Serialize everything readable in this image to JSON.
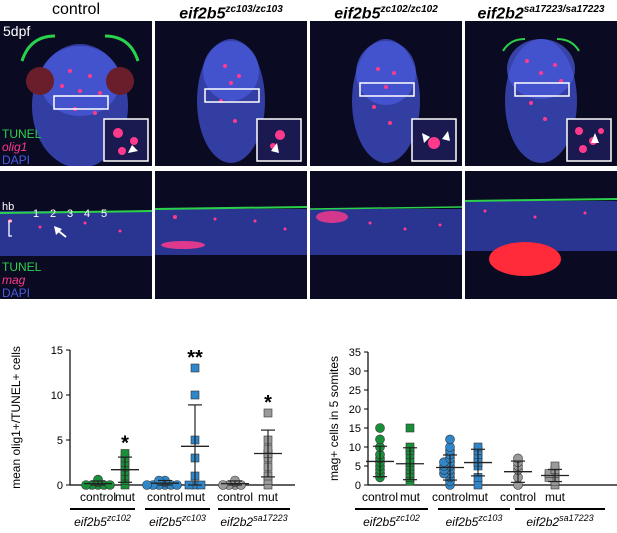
{
  "figure": {
    "stage_label": "5dpf",
    "column_headers": [
      {
        "base": "control",
        "gene": "",
        "sup": ""
      },
      {
        "base": "",
        "gene": "eif2b5",
        "sup": "zc103/zc103"
      },
      {
        "base": "",
        "gene": "eif2b5",
        "sup": "zc102/zc102"
      },
      {
        "base": "",
        "gene": "eif2b2",
        "sup": "sa17223/sa17223"
      }
    ],
    "row1_stains": [
      "TUNEL",
      "olig1",
      "DAPI"
    ],
    "row2_stains": [
      "TUNEL",
      "mag",
      "DAPI"
    ],
    "row2_region_label": "hb",
    "somite_numbers": [
      "1",
      "2",
      "3",
      "4",
      "5"
    ],
    "colors": {
      "tunel": "#2bd14b",
      "olig1": "#ff3a8c",
      "dapi": "#4a5be0",
      "green_marker": "#1a8f3a",
      "blue_marker": "#2f86c8",
      "grey_marker": "#9a9a9a"
    }
  },
  "chart_data": [
    {
      "type": "scatter",
      "ylabel": "mean olig1+/TUNEL+ cells",
      "ylim": [
        0,
        15
      ],
      "yticks": [
        "0",
        "5",
        "10",
        "15"
      ],
      "groups": [
        {
          "gene": "eif2b5",
          "sup": "zc102",
          "categories": [
            "control",
            "mut"
          ]
        },
        {
          "gene": "eif2b5",
          "sup": "zc103",
          "categories": [
            "control",
            "mut"
          ]
        },
        {
          "gene": "eif2b2",
          "sup": "sa17223",
          "categories": [
            "control",
            "mut"
          ]
        }
      ],
      "series": [
        {
          "group": 0,
          "category": "control",
          "marker": "circle",
          "color": "green",
          "values": [
            0,
            0,
            0,
            0,
            0,
            0.3,
            0.6
          ],
          "mean": 0.15,
          "sd": 0.3
        },
        {
          "group": 0,
          "category": "mut",
          "marker": "square",
          "color": "green",
          "values": [
            0,
            0.5,
            1,
            1.5,
            2,
            2.5,
            3,
            3.5
          ],
          "mean": 1.7,
          "sd": 1.4,
          "significance": "*"
        },
        {
          "group": 1,
          "category": "control",
          "marker": "circle",
          "color": "blue",
          "values": [
            0,
            0,
            0,
            0,
            0,
            0,
            0.3,
            0.5,
            0.5
          ],
          "mean": 0.2,
          "sd": 0.3
        },
        {
          "group": 1,
          "category": "mut",
          "marker": "square",
          "color": "blue",
          "values": [
            0,
            0,
            0,
            1,
            3,
            5,
            10,
            13
          ],
          "mean": 4.3,
          "sd": 4.6,
          "significance": "**"
        },
        {
          "group": 2,
          "category": "control",
          "marker": "circle",
          "color": "grey",
          "values": [
            0,
            0,
            0,
            0,
            0.3,
            0.5
          ],
          "mean": 0.15,
          "sd": 0.3
        },
        {
          "group": 2,
          "category": "mut",
          "marker": "square",
          "color": "grey",
          "values": [
            0,
            0.5,
            1,
            2,
            3,
            3.5,
            4,
            5,
            8
          ],
          "mean": 3.5,
          "sd": 2.6,
          "significance": "*"
        }
      ]
    },
    {
      "type": "scatter",
      "ylabel": "mag+ cells in 5 somites",
      "ylim": [
        0,
        35
      ],
      "yticks": [
        "0",
        "5",
        "10",
        "15",
        "20",
        "25",
        "30",
        "35"
      ],
      "groups": [
        {
          "gene": "eif2b5",
          "sup": "zc102",
          "categories": [
            "control",
            "mut"
          ]
        },
        {
          "gene": "eif2b5",
          "sup": "zc103",
          "categories": [
            "control",
            "mut"
          ]
        },
        {
          "gene": "eif2b2",
          "sup": "sa17223",
          "categories": [
            "control",
            "mut"
          ]
        }
      ],
      "series": [
        {
          "group": 0,
          "category": "control",
          "marker": "circle",
          "color": "green",
          "values": [
            2,
            3,
            4,
            5,
            6,
            7,
            8,
            10,
            12,
            15
          ],
          "mean": 6.2,
          "sd": 4.0
        },
        {
          "group": 0,
          "category": "mut",
          "marker": "square",
          "color": "green",
          "values": [
            1,
            2,
            3,
            4,
            5,
            6,
            8,
            9,
            10,
            15
          ],
          "mean": 5.6,
          "sd": 4.2
        },
        {
          "group": 1,
          "category": "control",
          "marker": "circle",
          "color": "blue",
          "values": [
            0,
            1,
            2,
            3,
            3,
            4,
            4,
            5,
            5,
            6,
            6,
            7,
            8,
            9,
            10,
            12
          ],
          "mean": 4.6,
          "sd": 3.3
        },
        {
          "group": 1,
          "category": "mut",
          "marker": "square",
          "color": "blue",
          "values": [
            0,
            2,
            5,
            6,
            7,
            8,
            9,
            10
          ],
          "mean": 5.9,
          "sd": 3.5
        },
        {
          "group": 2,
          "category": "control",
          "marker": "circle",
          "color": "grey",
          "values": [
            0,
            2,
            4,
            5,
            6,
            7
          ],
          "mean": 3.5,
          "sd": 2.8
        },
        {
          "group": 2,
          "category": "mut",
          "marker": "square",
          "color": "grey",
          "values": [
            0,
            1,
            2,
            2,
            3,
            3,
            4,
            5
          ],
          "mean": 2.5,
          "sd": 1.6
        }
      ]
    }
  ]
}
